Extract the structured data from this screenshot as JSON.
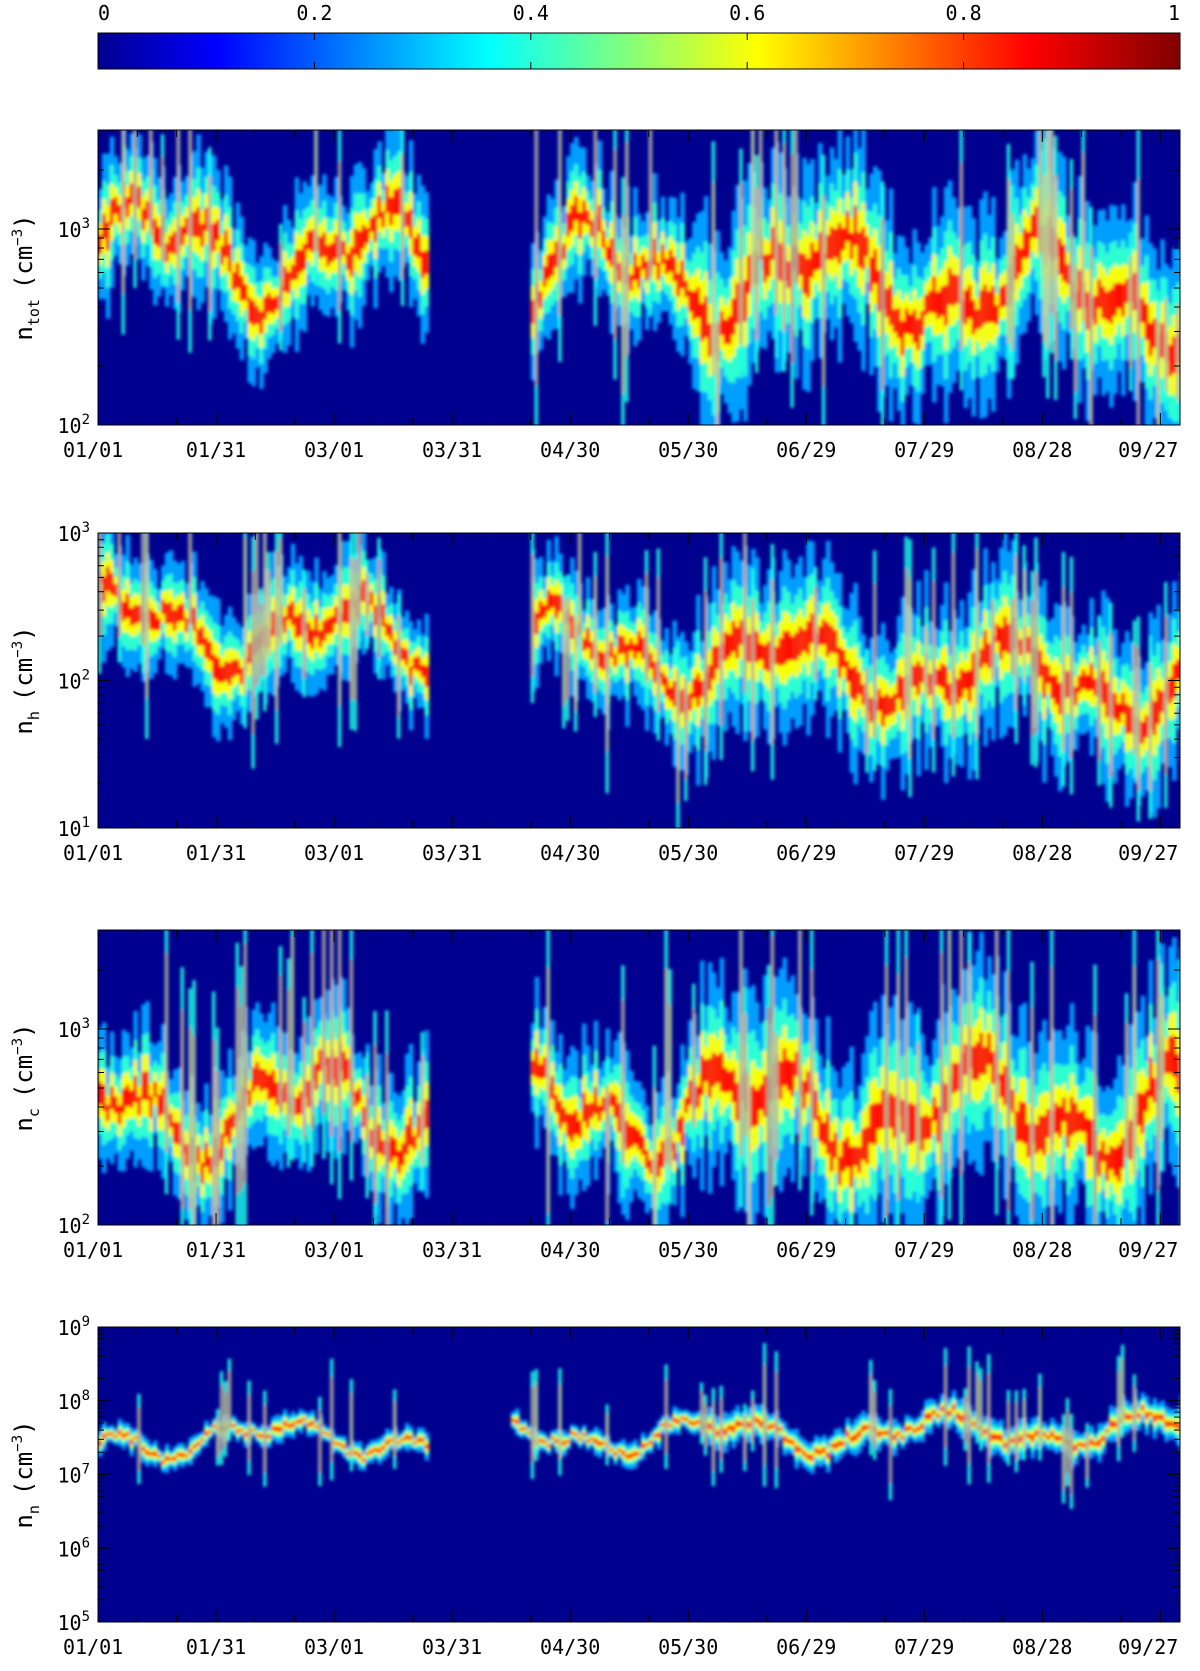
{
  "colorbar": {
    "ticks": [
      "0",
      "0.2",
      "0.4",
      "0.6",
      "0.8",
      "1"
    ],
    "range": [
      0,
      1
    ],
    "colormap": "jet",
    "colors": [
      "#00008f",
      "#0000ff",
      "#00ffff",
      "#ffff00",
      "#ff0000",
      "#800000"
    ]
  },
  "chart_data": [
    {
      "type": "heatmap",
      "ylabel_var": "n",
      "ylabel_sub": "tot",
      "ylabel_unit": "(cm",
      "ylabel_exp": "−3",
      "ylabel_close": ")",
      "yscale": "log",
      "ylim": [
        100,
        3200
      ],
      "ytick_labels": [
        {
          "base": "10",
          "exp": "2",
          "value": 100
        },
        {
          "base": "10",
          "exp": "3",
          "value": 1000
        }
      ],
      "xtick_labels": [
        "01/01",
        "01/31",
        "03/01",
        "03/31",
        "04/30",
        "05/30",
        "06/29",
        "07/29",
        "08/28",
        "09/27"
      ],
      "xlim_days": [
        0,
        275
      ],
      "gaps": [
        [
          84,
          109
        ]
      ],
      "band": {
        "start": 800,
        "end": 450,
        "spread": 0.9,
        "spikes": 38,
        "late_spikes": 60
      }
    },
    {
      "type": "heatmap",
      "ylabel_var": "n",
      "ylabel_sub": "h",
      "ylabel_unit": "(cm",
      "ylabel_exp": "−3",
      "ylabel_close": ")",
      "yscale": "log",
      "ylim": [
        10,
        1000
      ],
      "ytick_labels": [
        {
          "base": "10",
          "exp": "1",
          "value": 10
        },
        {
          "base": "10",
          "exp": "2",
          "value": 100
        },
        {
          "base": "10",
          "exp": "3",
          "value": 1000
        }
      ],
      "xtick_labels": [
        "01/01",
        "01/31",
        "03/01",
        "03/31",
        "04/30",
        "05/30",
        "06/29",
        "07/29",
        "08/28",
        "09/27"
      ],
      "xlim_days": [
        0,
        275
      ],
      "gaps": [
        [
          84,
          109
        ]
      ],
      "band": {
        "start": 250,
        "end": 90,
        "spread": 1.0,
        "spikes": 40,
        "late_spikes": 55
      }
    },
    {
      "type": "heatmap",
      "ylabel_var": "n",
      "ylabel_sub": "c",
      "ylabel_unit": "(cm",
      "ylabel_exp": "−3",
      "ylabel_close": ")",
      "yscale": "log",
      "ylim": [
        100,
        3200
      ],
      "ytick_labels": [
        {
          "base": "10",
          "exp": "2",
          "value": 100
        },
        {
          "base": "10",
          "exp": "3",
          "value": 1000
        }
      ],
      "xtick_labels": [
        "01/01",
        "01/31",
        "03/01",
        "03/31",
        "04/30",
        "05/30",
        "06/29",
        "07/29",
        "08/28",
        "09/27"
      ],
      "xlim_days": [
        0,
        275
      ],
      "gaps": [
        [
          84,
          109
        ]
      ],
      "band": {
        "start": 400,
        "end": 380,
        "spread": 0.9,
        "spikes": 38,
        "late_spikes": 55
      }
    },
    {
      "type": "heatmap",
      "ylabel_var": "n",
      "ylabel_sub": "n",
      "ylabel_unit": "(cm",
      "ylabel_exp": "−3",
      "ylabel_close": ")",
      "yscale": "log",
      "ylim": [
        100000,
        1000000000
      ],
      "ytick_labels": [
        {
          "base": "10",
          "exp": "5",
          "value": 100000
        },
        {
          "base": "10",
          "exp": "6",
          "value": 1000000
        },
        {
          "base": "10",
          "exp": "7",
          "value": 10000000
        },
        {
          "base": "10",
          "exp": "8",
          "value": 100000000
        },
        {
          "base": "10",
          "exp": "9",
          "value": 1000000000
        }
      ],
      "xtick_labels": [
        "01/01",
        "01/31",
        "03/01",
        "03/31",
        "04/30",
        "05/30",
        "06/29",
        "07/29",
        "08/28",
        "09/27"
      ],
      "xlim_days": [
        0,
        275
      ],
      "gaps": [
        [
          84,
          104
        ]
      ],
      "band": {
        "start": 30000000,
        "end": 40000000,
        "spread": 0.4,
        "spikes": 20,
        "late_spikes": 70
      }
    }
  ]
}
